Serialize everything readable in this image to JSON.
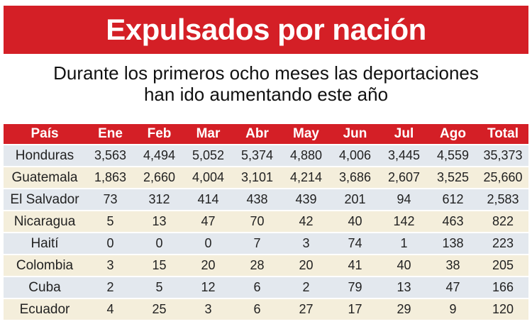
{
  "chart_data": {
    "type": "table",
    "title": "Expulsados por nación",
    "subtitle_lines": [
      "Durante los primeros ocho meses las deportaciones",
      "han ido aumentando este año"
    ],
    "columns": [
      "País",
      "Ene",
      "Feb",
      "Mar",
      "Abr",
      "May",
      "Jun",
      "Jul",
      "Ago",
      "Total"
    ],
    "rows": [
      [
        "Honduras",
        "3,563",
        "4,494",
        "5,052",
        "5,374",
        "4,880",
        "4,006",
        "3,445",
        "4,559",
        "35,373"
      ],
      [
        "Guatemala",
        "1,863",
        "2,660",
        "4,004",
        "3,101",
        "4,214",
        "3,686",
        "2,607",
        "3,525",
        "25,660"
      ],
      [
        "El Salvador",
        "73",
        "312",
        "414",
        "438",
        "439",
        "201",
        "94",
        "612",
        "2,583"
      ],
      [
        "Nicaragua",
        "5",
        "13",
        "47",
        "70",
        "42",
        "40",
        "142",
        "463",
        "822"
      ],
      [
        "Haití",
        "0",
        "0",
        "0",
        "7",
        "3",
        "74",
        "1",
        "138",
        "223"
      ],
      [
        "Colombia",
        "3",
        "15",
        "20",
        "28",
        "20",
        "41",
        "40",
        "38",
        "205"
      ],
      [
        "Cuba",
        "2",
        "5",
        "12",
        "6",
        "2",
        "79",
        "13",
        "47",
        "166"
      ],
      [
        "Ecuador",
        "4",
        "25",
        "3",
        "6",
        "27",
        "17",
        "29",
        "9",
        "120"
      ]
    ]
  },
  "colors": {
    "header_red": "#d41f26",
    "row_blue": "#e3e8ee",
    "row_cream": "#f4eedb"
  }
}
